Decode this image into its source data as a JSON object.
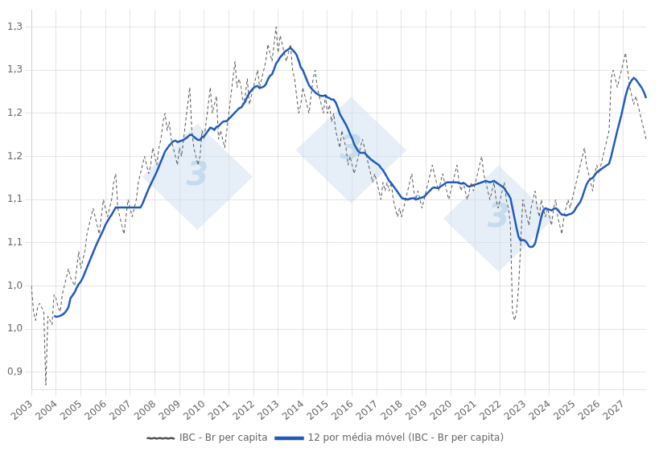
{
  "chart_data": {
    "type": "line",
    "categories": [
      "2003",
      null,
      null,
      null,
      null,
      null,
      null,
      null,
      null,
      null,
      null,
      null,
      "2004",
      null,
      null,
      null,
      null,
      null,
      null,
      null,
      null,
      null,
      null,
      null,
      "2005",
      null,
      null,
      null,
      null,
      null,
      null,
      null,
      null,
      null,
      null,
      null,
      "2006",
      null,
      null,
      null,
      null,
      null,
      null,
      null,
      null,
      null,
      null,
      null,
      "2007",
      null,
      null,
      null,
      null,
      null,
      null,
      null,
      null,
      null,
      null,
      null,
      "2008",
      null,
      null,
      null,
      null,
      null,
      null,
      null,
      null,
      null,
      null,
      null,
      "2009",
      null,
      null,
      null,
      null,
      null,
      null,
      null,
      null,
      null,
      null,
      null,
      "2010",
      null,
      null,
      null,
      null,
      null,
      null,
      null,
      null,
      null,
      null,
      null,
      "2011",
      null,
      null,
      null,
      null,
      null,
      null,
      null,
      null,
      null,
      null,
      null,
      "2012",
      null,
      null,
      null,
      null,
      null,
      null,
      null,
      null,
      null,
      null,
      null,
      "2013",
      null,
      null,
      null,
      null,
      null,
      null,
      null,
      null,
      null,
      null,
      null,
      "2014",
      null,
      null,
      null,
      null,
      null,
      null,
      null,
      null,
      null,
      null,
      null,
      "2015",
      null,
      null,
      null,
      null,
      null,
      null,
      null,
      null,
      null,
      null,
      null,
      "2016",
      null,
      null,
      null,
      null,
      null,
      null,
      null,
      null,
      null,
      null,
      null,
      "2017",
      null,
      null,
      null,
      null,
      null,
      null,
      null,
      null,
      null,
      null,
      null,
      "2018",
      null,
      null,
      null,
      null,
      null,
      null,
      null,
      null,
      null,
      null,
      null,
      "2019",
      null,
      null,
      null,
      null,
      null,
      null,
      null,
      null,
      null,
      null,
      null,
      "2020",
      null,
      null,
      null,
      null,
      null,
      null,
      null,
      null,
      null,
      null,
      null,
      "2021",
      null,
      null,
      null,
      null,
      null,
      null,
      null,
      null,
      null,
      null,
      null,
      "2022",
      null,
      null,
      null,
      null,
      null,
      null,
      null,
      null,
      null,
      null,
      null,
      "2023",
      null,
      null,
      null,
      null,
      null,
      null,
      null,
      null,
      null,
      null,
      null,
      "2024",
      null,
      null,
      null,
      null,
      null,
      null,
      null,
      null,
      null,
      null,
      null,
      "2025",
      null,
      null,
      null,
      null,
      null,
      null,
      null,
      null,
      null,
      null,
      null,
      "2026",
      null,
      null,
      null,
      null,
      null,
      null,
      null,
      null,
      null,
      null,
      null,
      "2027",
      null,
      null,
      null,
      null,
      null,
      null,
      null,
      null,
      null,
      null,
      null
    ],
    "series": [
      {
        "name": "IBC - Br per capita",
        "color": "#555555",
        "line_style": "dashed",
        "values": [
          1.0,
          0.97,
          0.96,
          0.975,
          0.98,
          0.975,
          0.97,
          0.885,
          0.965,
          0.96,
          0.955,
          0.99,
          0.985,
          0.975,
          0.97,
          0.99,
          1.0,
          1.01,
          1.02,
          1.01,
          1.005,
          1.0,
          1.02,
          1.04,
          1.02,
          1.03,
          1.04,
          1.06,
          1.07,
          1.08,
          1.09,
          1.08,
          1.07,
          1.06,
          1.08,
          1.1,
          1.09,
          1.08,
          1.09,
          1.1,
          1.12,
          1.13,
          1.09,
          1.08,
          1.07,
          1.06,
          1.08,
          1.1,
          1.09,
          1.08,
          1.09,
          1.1,
          1.12,
          1.13,
          1.14,
          1.15,
          1.14,
          1.13,
          1.14,
          1.16,
          1.15,
          1.14,
          1.16,
          1.17,
          1.19,
          1.2,
          1.18,
          1.19,
          1.17,
          1.16,
          1.15,
          1.14,
          1.16,
          1.15,
          1.17,
          1.19,
          1.21,
          1.23,
          1.18,
          1.16,
          1.15,
          1.14,
          1.15,
          1.18,
          1.17,
          1.19,
          1.21,
          1.23,
          1.2,
          1.21,
          1.22,
          1.17,
          1.18,
          1.17,
          1.16,
          1.18,
          1.2,
          1.22,
          1.24,
          1.26,
          1.23,
          1.24,
          1.23,
          1.21,
          1.22,
          1.24,
          1.21,
          1.22,
          1.23,
          1.24,
          1.25,
          1.23,
          1.24,
          1.25,
          1.26,
          1.28,
          1.27,
          1.26,
          1.28,
          1.3,
          1.27,
          1.29,
          1.28,
          1.27,
          1.26,
          1.27,
          1.28,
          1.25,
          1.24,
          1.22,
          1.2,
          1.21,
          1.23,
          1.22,
          1.21,
          1.2,
          1.22,
          1.24,
          1.25,
          1.23,
          1.22,
          1.21,
          1.2,
          1.22,
          1.2,
          1.21,
          1.19,
          1.2,
          1.18,
          1.17,
          1.16,
          1.18,
          1.17,
          1.16,
          1.14,
          1.15,
          1.14,
          1.13,
          1.14,
          1.15,
          1.16,
          1.17,
          1.16,
          1.15,
          1.14,
          1.13,
          1.12,
          1.13,
          1.12,
          1.11,
          1.1,
          1.12,
          1.11,
          1.12,
          1.11,
          1.12,
          1.1,
          1.09,
          1.08,
          1.09,
          1.08,
          1.09,
          1.1,
          1.11,
          1.12,
          1.13,
          1.11,
          1.1,
          1.11,
          1.1,
          1.09,
          1.1,
          1.11,
          1.12,
          1.13,
          1.14,
          1.13,
          1.12,
          1.11,
          1.12,
          1.13,
          1.12,
          1.11,
          1.1,
          1.11,
          1.12,
          1.13,
          1.14,
          1.12,
          1.11,
          1.12,
          1.11,
          1.1,
          1.11,
          1.12,
          1.11,
          1.12,
          1.13,
          1.14,
          1.15,
          1.13,
          1.12,
          1.11,
          1.1,
          1.11,
          1.12,
          1.1,
          1.09,
          1.1,
          1.11,
          1.12,
          1.1,
          1.09,
          1.07,
          0.97,
          0.96,
          0.97,
          1.0,
          1.05,
          1.1,
          1.09,
          1.08,
          1.07,
          1.09,
          1.1,
          1.11,
          1.09,
          1.08,
          1.1,
          1.09,
          1.08,
          1.09,
          1.08,
          1.07,
          1.09,
          1.1,
          1.08,
          1.07,
          1.06,
          1.08,
          1.09,
          1.1,
          1.09,
          1.1,
          1.11,
          1.12,
          1.13,
          1.14,
          1.15,
          1.16,
          1.14,
          1.13,
          1.12,
          1.11,
          1.13,
          1.14,
          1.13,
          1.14,
          1.15,
          1.16,
          1.17,
          1.18,
          1.24,
          1.25,
          1.24,
          1.23,
          1.24,
          1.25,
          1.26,
          1.27,
          1.25,
          1.23,
          1.22,
          1.21,
          1.22,
          1.21,
          1.2,
          1.19,
          1.18,
          1.17
        ]
      },
      {
        "name": "12 por média móvel (IBC - Br per capita)",
        "color": "#1f5bbf",
        "line_style": "solid",
        "values": [
          null,
          null,
          null,
          null,
          null,
          null,
          null,
          null,
          null,
          null,
          null,
          0.965417,
          0.964167,
          0.964583,
          0.965417,
          0.966667,
          0.968333,
          0.97125,
          0.975417,
          0.985833,
          0.989167,
          0.9925,
          0.997917,
          1.002083,
          1.005,
          1.009583,
          1.015417,
          1.02125,
          1.027083,
          1.032917,
          1.03875,
          1.044583,
          1.05,
          1.055,
          1.06,
          1.065,
          1.070833,
          1.075,
          1.079167,
          1.0825,
          1.086667,
          1.090833,
          1.090833,
          1.090833,
          1.090833,
          1.090833,
          1.090833,
          1.090833,
          1.090833,
          1.090833,
          1.090833,
          1.090833,
          1.090833,
          1.090833,
          1.095,
          1.100833,
          1.106667,
          1.1125,
          1.1175,
          1.1225,
          1.1275,
          1.1325,
          1.138333,
          1.144167,
          1.15,
          1.155833,
          1.159167,
          1.1625,
          1.165,
          1.1675,
          1.168333,
          1.166667,
          1.1675,
          1.168333,
          1.169167,
          1.170833,
          1.1725,
          1.175,
          1.175,
          1.1725,
          1.170833,
          1.169167,
          1.169167,
          1.1725,
          1.173333,
          1.176667,
          1.18,
          1.183333,
          1.1825,
          1.180833,
          1.184167,
          1.185,
          1.1875,
          1.19,
          1.190833,
          1.190833,
          1.193333,
          1.195833,
          1.198333,
          1.200833,
          1.203333,
          1.205833,
          1.206667,
          1.21,
          1.213333,
          1.219167,
          1.223333,
          1.226667,
          1.229167,
          1.230833,
          1.231667,
          1.229167,
          1.23,
          1.230833,
          1.233333,
          1.239167,
          1.243333,
          1.245,
          1.250833,
          1.2575,
          1.260833,
          1.265,
          1.2675,
          1.270833,
          1.2725,
          1.274167,
          1.275833,
          1.273333,
          1.270833,
          1.2675,
          1.260833,
          1.253333,
          1.25,
          1.244167,
          1.238333,
          1.2325,
          1.229167,
          1.226667,
          1.224167,
          1.2225,
          1.220833,
          1.22,
          1.22,
          1.220833,
          1.218333,
          1.2175,
          1.215833,
          1.215833,
          1.2125,
          1.206667,
          1.199167,
          1.195,
          1.190833,
          1.186667,
          1.181667,
          1.175833,
          1.170833,
          1.164167,
          1.16,
          1.155833,
          1.154167,
          1.154167,
          1.154167,
          1.151667,
          1.149167,
          1.146667,
          1.145,
          1.143333,
          1.141667,
          1.14,
          1.136667,
          1.134167,
          1.13,
          1.125833,
          1.121667,
          1.119167,
          1.115833,
          1.1125,
          1.109167,
          1.105833,
          1.1025,
          1.100833,
          1.100833,
          1.1,
          1.100833,
          1.101667,
          1.101667,
          1.1,
          1.100833,
          1.101667,
          1.1025,
          1.103333,
          1.105833,
          1.108333,
          1.110833,
          1.113333,
          1.114167,
          1.113333,
          1.113333,
          1.115,
          1.116667,
          1.118333,
          1.12,
          1.12,
          1.12,
          1.12,
          1.12,
          1.12,
          1.119167,
          1.118333,
          1.119167,
          1.118333,
          1.115833,
          1.115,
          1.115833,
          1.116667,
          1.1175,
          1.118333,
          1.119167,
          1.12,
          1.120833,
          1.121667,
          1.120833,
          1.12,
          1.120833,
          1.121667,
          1.12,
          1.118333,
          1.116667,
          1.115,
          1.113333,
          1.109167,
          1.105833,
          1.101667,
          1.09,
          1.078333,
          1.066667,
          1.056667,
          1.0525,
          1.053333,
          1.0525,
          1.05,
          1.045833,
          1.045,
          1.045833,
          1.049167,
          1.059167,
          1.069167,
          1.08,
          1.0875,
          1.09,
          1.089167,
          1.088333,
          1.0875,
          1.089167,
          1.09,
          1.088333,
          1.085,
          1.0825,
          1.0825,
          1.081667,
          1.0825,
          1.083333,
          1.084167,
          1.086667,
          1.090833,
          1.094167,
          1.0975,
          1.103333,
          1.110833,
          1.1175,
          1.121667,
          1.124167,
          1.125,
          1.128333,
          1.131667,
          1.133333,
          1.135,
          1.136667,
          1.138333,
          1.14,
          1.141667,
          1.15,
          1.16,
          1.17,
          1.18,
          1.189167,
          1.198333,
          1.209167,
          1.22,
          1.228333,
          1.234167,
          1.238333,
          1.240833,
          1.239167,
          1.235833,
          1.2325,
          1.229167,
          1.224167,
          1.2175
        ]
      }
    ],
    "ylim": [
      0.88,
      1.32
    ],
    "yticks": [
      {
        "value": 0.9,
        "label": "0,9"
      },
      {
        "value": 0.95,
        "label": "1,0"
      },
      {
        "value": 1.0,
        "label": "1,0"
      },
      {
        "value": 1.05,
        "label": "1,1"
      },
      {
        "value": 1.1,
        "label": "1,1"
      },
      {
        "value": 1.15,
        "label": "1,2"
      },
      {
        "value": 1.2,
        "label": "1,2"
      },
      {
        "value": 1.25,
        "label": "1,3"
      },
      {
        "value": 1.3,
        "label": "1,3"
      }
    ],
    "grid": true,
    "legend": "bottom",
    "annotations": [
      {
        "text": "3"
      },
      {
        "text": "3"
      },
      {
        "text": "3"
      }
    ]
  }
}
